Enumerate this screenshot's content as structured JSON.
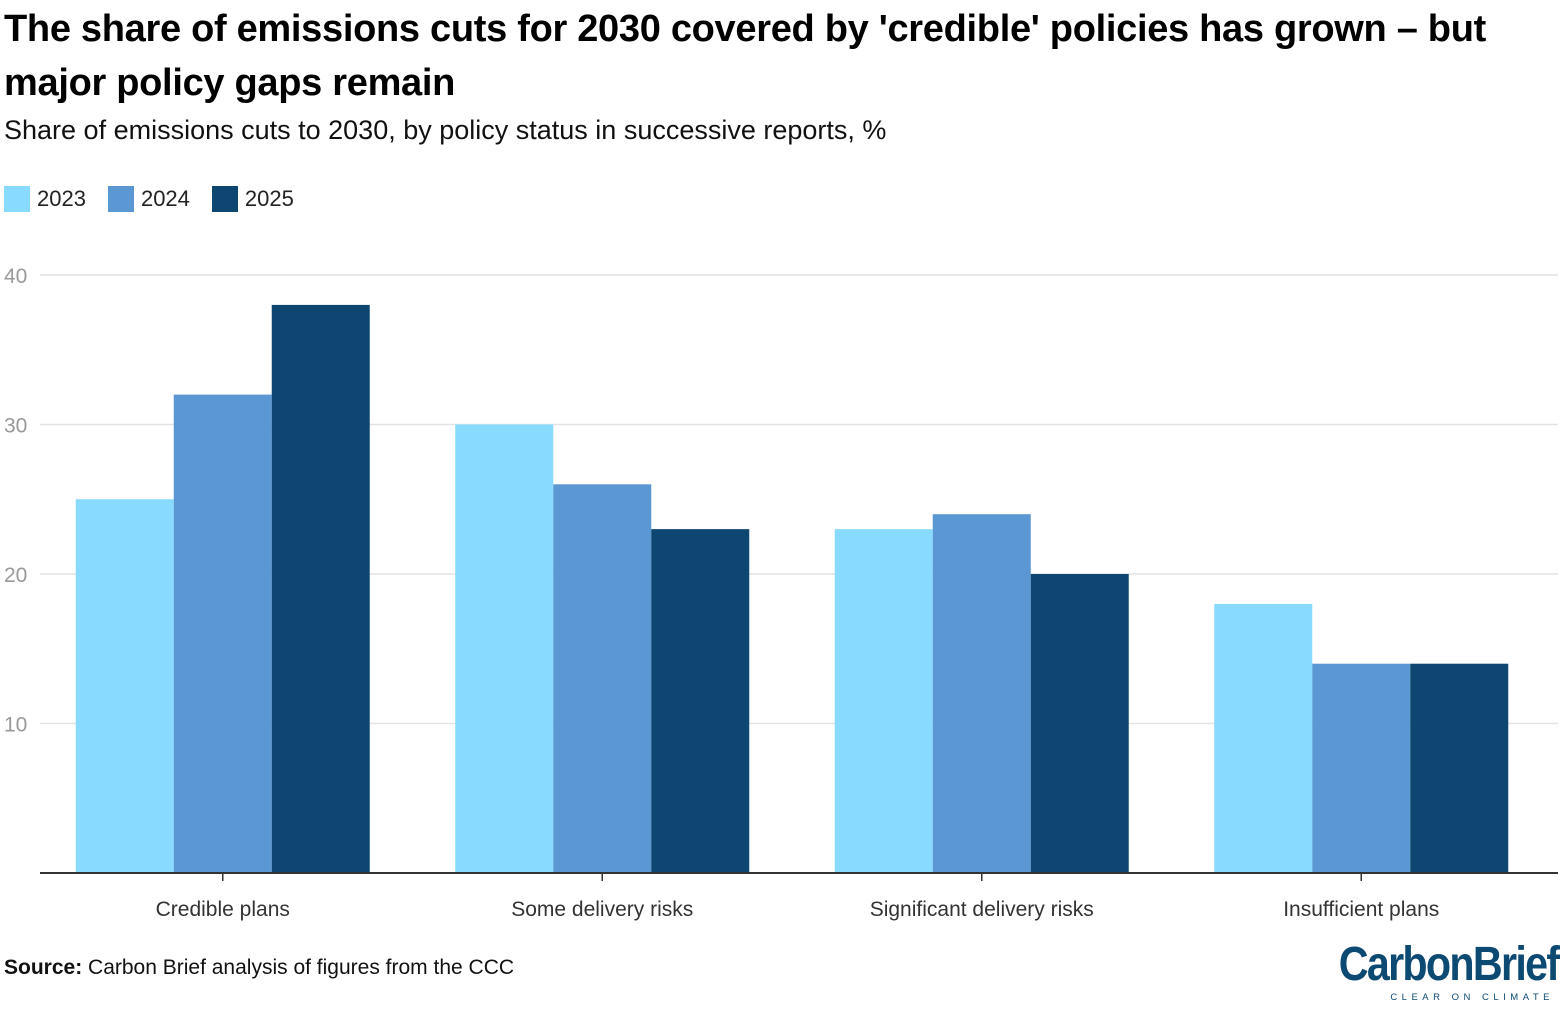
{
  "header": {
    "title": "The share of emissions cuts for 2030 covered by 'credible' policies has grown – but major policy gaps remain",
    "subtitle": "Share of emissions cuts to 2030, by policy status in successive reports, %"
  },
  "footer": {
    "source_label": "Source:",
    "source_text": "Carbon Brief analysis of figures from the CCC"
  },
  "logo": {
    "name": "CarbonBrief",
    "tagline": "CLEAR ON CLIMATE"
  },
  "colors": {
    "2023": "#89daff",
    "2024": "#5b97d3",
    "2025": "#0d4670",
    "grid": "#e3e3e3",
    "axis": "#333333",
    "tick": "#999999"
  },
  "chart_data": {
    "type": "bar",
    "title": "The share of emissions cuts for 2030 covered by 'credible' policies has grown – but major policy gaps remain",
    "subtitle": "Share of emissions cuts to 2030, by policy status in successive reports, %",
    "categories": [
      "Credible plans",
      "Some delivery risks",
      "Significant delivery risks",
      "Insufficient plans"
    ],
    "series": [
      {
        "name": "2023",
        "values": [
          25,
          30,
          23,
          18
        ]
      },
      {
        "name": "2024",
        "values": [
          32,
          26,
          24,
          14
        ]
      },
      {
        "name": "2025",
        "values": [
          38,
          23,
          20,
          14
        ]
      }
    ],
    "xlabel": "",
    "ylabel": "",
    "ylim": [
      0,
      40
    ],
    "yticks": [
      10,
      20,
      30,
      40
    ],
    "grid": true,
    "legend": "top-left"
  }
}
